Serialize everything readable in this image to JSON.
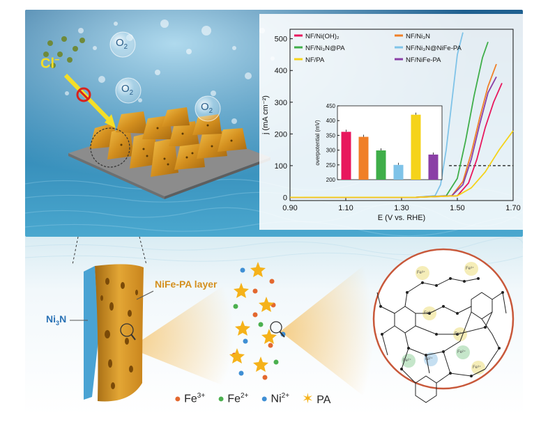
{
  "top_scene": {
    "chloride_label": "Cl",
    "chloride_charge": "−",
    "o2_bubbles": [
      {
        "main": "O",
        "sub": "2"
      },
      {
        "main": "O",
        "sub": "2"
      },
      {
        "main": "O",
        "sub": "2"
      }
    ]
  },
  "chart_data": [
    {
      "type": "line",
      "xlabel": "E (V vs. RHE)",
      "ylabel": "j (mA cm⁻²)",
      "x_ticks": [
        "0.90",
        "1.10",
        "1.30",
        "1.50",
        "1.70"
      ],
      "y_ticks": [
        "0",
        "100",
        "200",
        "300",
        "400",
        "500"
      ],
      "xlim": [
        0.9,
        1.7
      ],
      "ylim": [
        -10,
        530
      ],
      "legend": [
        {
          "name": "NF/Ni(OH)₂",
          "color": "#e8175d"
        },
        {
          "name": "NF/Ni₃N",
          "color": "#f07f27"
        },
        {
          "name": "NF/Ni₃N@PA",
          "color": "#3fae49"
        },
        {
          "name": "NF/Ni₃N@NiFe-PA",
          "color": "#7fc3e8"
        },
        {
          "name": "NF/PA",
          "color": "#f5d31a"
        },
        {
          "name": "NF/NiFe-PA",
          "color": "#8a3fa6"
        }
      ],
      "legend_placement": "top",
      "reference_line_y": 100,
      "series": [
        {
          "name": "NF/Ni₃N@NiFe-PA",
          "color": "#7fc3e8",
          "x": [
            0.9,
            1.35,
            1.42,
            1.44,
            1.46,
            1.48,
            1.5,
            1.52
          ],
          "y": [
            0,
            0,
            5,
            40,
            150,
            300,
            450,
            520
          ]
        },
        {
          "name": "NF/Ni₃N@PA",
          "color": "#3fae49",
          "x": [
            0.9,
            1.35,
            1.46,
            1.5,
            1.53,
            1.56,
            1.59,
            1.61
          ],
          "y": [
            0,
            0,
            5,
            60,
            180,
            320,
            440,
            490
          ]
        },
        {
          "name": "NF/Ni₃N",
          "color": "#f07f27",
          "x": [
            0.9,
            1.35,
            1.48,
            1.52,
            1.55,
            1.58,
            1.61,
            1.64
          ],
          "y": [
            0,
            0,
            5,
            50,
            140,
            250,
            350,
            420
          ]
        },
        {
          "name": "NF/NiFe-PA",
          "color": "#8a3fa6",
          "x": [
            0.9,
            1.35,
            1.48,
            1.52,
            1.55,
            1.58,
            1.61,
            1.64
          ],
          "y": [
            0,
            0,
            5,
            40,
            120,
            230,
            330,
            380
          ]
        },
        {
          "name": "NF/Ni(OH)₂",
          "color": "#e8175d",
          "x": [
            0.9,
            1.35,
            1.5,
            1.54,
            1.57,
            1.6,
            1.63,
            1.66
          ],
          "y": [
            0,
            0,
            5,
            45,
            120,
            220,
            300,
            360
          ]
        },
        {
          "name": "NF/PA",
          "color": "#f5d31a",
          "x": [
            0.9,
            1.35,
            1.5,
            1.55,
            1.6,
            1.65,
            1.7
          ],
          "y": [
            0,
            0,
            5,
            30,
            80,
            150,
            210
          ]
        }
      ]
    },
    {
      "type": "bar",
      "ylabel": "overpotential (mV)",
      "y_ticks": [
        "200",
        "250",
        "300",
        "350",
        "400",
        "450"
      ],
      "ylim": [
        200,
        450
      ],
      "categories": [
        "NF/Ni(OH)₂",
        "NF/Ni₃N",
        "NF/Ni₃N@PA",
        "NF/Ni₃N@NiFe-PA",
        "NF/PA",
        "NF/NiFe-PA"
      ],
      "values": [
        362,
        345,
        299,
        250,
        420,
        285
      ],
      "colors": [
        "#e8175d",
        "#f07f27",
        "#3fae49",
        "#7fc3e8",
        "#f5d31a",
        "#8a3fa6"
      ]
    }
  ],
  "bottom_scene": {
    "nife_pa_label": "NiFe-PA layer",
    "ni3n_label": {
      "main": "Ni",
      "sub": "3",
      "rest": "N"
    },
    "legend": [
      {
        "ion": "Fe",
        "charge": "3+",
        "color": "#e3682f",
        "shape": "dot"
      },
      {
        "ion": "Fe",
        "charge": "2+",
        "color": "#4bb04f",
        "shape": "dot"
      },
      {
        "ion": "Ni",
        "charge": "2+",
        "color": "#3f8fd4",
        "shape": "dot"
      },
      {
        "ion": "PA",
        "charge": "",
        "color": "#f5b21a",
        "shape": "star"
      }
    ],
    "molecular_labels": [
      "Fe³⁺",
      "Fe³⁺",
      "Fe³⁺",
      "Fe³⁺",
      "Fe²⁺",
      "Ni²⁺",
      "Fe²⁺",
      "Fe³⁺"
    ]
  }
}
